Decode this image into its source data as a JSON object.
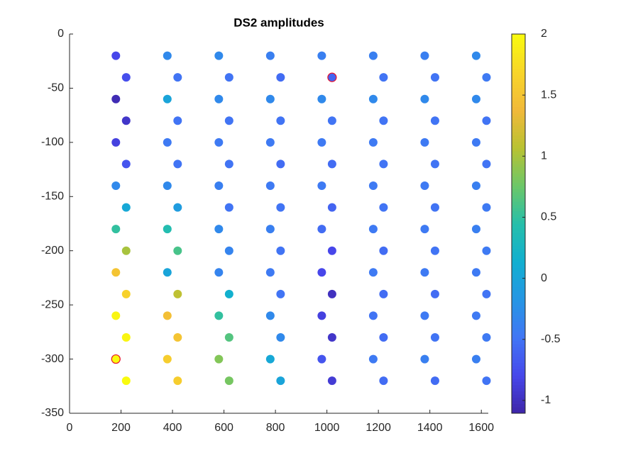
{
  "chart_data": {
    "type": "scatter",
    "title": "DS2 amplitudes",
    "x": [
      180,
      380,
      580,
      780,
      980,
      1180,
      1380,
      1580,
      220,
      420,
      620,
      820,
      1020,
      1220,
      1420,
      1620,
      180,
      380,
      580,
      780,
      980,
      1180,
      1380,
      1580,
      220,
      420,
      620,
      820,
      1020,
      1220,
      1420,
      1620,
      180,
      380,
      580,
      780,
      980,
      1180,
      1380,
      1580,
      220,
      420,
      620,
      820,
      1020,
      1220,
      1420,
      1620,
      180,
      380,
      580,
      780,
      980,
      1180,
      1380,
      1580,
      220,
      420,
      620,
      820,
      1020,
      1220,
      1420,
      1620,
      180,
      380,
      580,
      780,
      980,
      1180,
      1380,
      1580,
      220,
      420,
      620,
      820,
      1020,
      1220,
      1420,
      1620,
      180,
      380,
      580,
      780,
      980,
      1180,
      1380,
      1580,
      220,
      420,
      620,
      820,
      1020,
      1220,
      1420,
      1620,
      180,
      380,
      580,
      780,
      980,
      1180,
      1380,
      1580,
      220,
      420,
      620,
      820,
      1020,
      1220,
      1420,
      1620,
      180,
      380,
      580,
      780,
      980,
      1180,
      1380,
      1580,
      220,
      420,
      620,
      820,
      1020,
      1220,
      1420,
      1620
    ],
    "y": [
      -20,
      -20,
      -20,
      -20,
      -20,
      -20,
      -20,
      -20,
      -40,
      -40,
      -40,
      -40,
      -40,
      -40,
      -40,
      -40,
      -60,
      -60,
      -60,
      -60,
      -60,
      -60,
      -60,
      -60,
      -80,
      -80,
      -80,
      -80,
      -80,
      -80,
      -80,
      -80,
      -100,
      -100,
      -100,
      -100,
      -100,
      -100,
      -100,
      -100,
      -120,
      -120,
      -120,
      -120,
      -120,
      -120,
      -120,
      -120,
      -140,
      -140,
      -140,
      -140,
      -140,
      -140,
      -140,
      -140,
      -160,
      -160,
      -160,
      -160,
      -160,
      -160,
      -160,
      -160,
      -180,
      -180,
      -180,
      -180,
      -180,
      -180,
      -180,
      -180,
      -200,
      -200,
      -200,
      -200,
      -200,
      -200,
      -200,
      -200,
      -220,
      -220,
      -220,
      -220,
      -220,
      -220,
      -220,
      -220,
      -240,
      -240,
      -240,
      -240,
      -240,
      -240,
      -240,
      -240,
      -260,
      -260,
      -260,
      -260,
      -260,
      -260,
      -260,
      -260,
      -280,
      -280,
      -280,
      -280,
      -280,
      -280,
      -280,
      -280,
      -300,
      -300,
      -300,
      -300,
      -300,
      -300,
      -300,
      -300,
      -320,
      -320,
      -320,
      -320,
      -320,
      -320,
      -320,
      -320
    ],
    "c": [
      -0.8,
      -0.3,
      -0.3,
      -0.4,
      -0.4,
      -0.4,
      -0.4,
      -0.3,
      -0.75,
      -0.5,
      -0.5,
      -0.55,
      -0.6,
      -0.5,
      -0.5,
      -0.45,
      -1.05,
      0.0,
      -0.3,
      -0.3,
      -0.3,
      -0.3,
      -0.3,
      -0.3,
      -0.95,
      -0.5,
      -0.5,
      -0.5,
      -0.5,
      -0.5,
      -0.5,
      -0.5,
      -0.85,
      -0.45,
      -0.45,
      -0.45,
      -0.45,
      -0.45,
      -0.45,
      -0.45,
      -0.7,
      -0.5,
      -0.5,
      -0.55,
      -0.55,
      -0.5,
      -0.5,
      -0.5,
      -0.3,
      -0.3,
      -0.4,
      -0.45,
      -0.45,
      -0.45,
      -0.45,
      -0.4,
      0.05,
      -0.1,
      -0.5,
      -0.5,
      -0.6,
      -0.5,
      -0.5,
      -0.45,
      0.5,
      0.4,
      -0.3,
      -0.4,
      -0.55,
      -0.45,
      -0.45,
      -0.4,
      1.0,
      0.6,
      -0.35,
      -0.5,
      -0.8,
      -0.55,
      -0.5,
      -0.45,
      1.5,
      0.0,
      -0.35,
      -0.45,
      -0.8,
      -0.45,
      -0.45,
      -0.45,
      1.65,
      1.1,
      0.15,
      -0.5,
      -1.0,
      -0.55,
      -0.55,
      -0.5,
      1.95,
      1.45,
      0.5,
      -0.3,
      -0.85,
      -0.5,
      -0.45,
      -0.45,
      1.95,
      1.5,
      0.65,
      -0.3,
      -0.95,
      -0.55,
      -0.5,
      -0.45,
      2.0,
      1.6,
      0.85,
      0.05,
      -0.7,
      -0.45,
      -0.4,
      -0.4,
      2.0,
      1.6,
      0.8,
      0.0,
      -0.9,
      -0.55,
      -0.55,
      -0.5
    ],
    "highlight_indices": [
      12,
      112
    ],
    "highlight_color": "#e8102a",
    "xlim": [
      0,
      1627
    ],
    "xticks": [
      0,
      200,
      400,
      600,
      800,
      1000,
      1200,
      1400,
      1600
    ],
    "ylim": [
      -350,
      0
    ],
    "yticks": [
      0,
      -50,
      -100,
      -150,
      -200,
      -250,
      -300,
      -350
    ],
    "clim": [
      -1.105,
      2
    ],
    "cticks": [
      -1,
      -0.5,
      0,
      0.5,
      1,
      1.5,
      2
    ],
    "colormap": [
      "#3e26a8",
      "#4747eb",
      "#4176f5",
      "#2596e4",
      "#11afd0",
      "#26bfaa",
      "#6cc768",
      "#b9c232",
      "#f1b93a",
      "#f8d529",
      "#f9fb0e"
    ]
  }
}
